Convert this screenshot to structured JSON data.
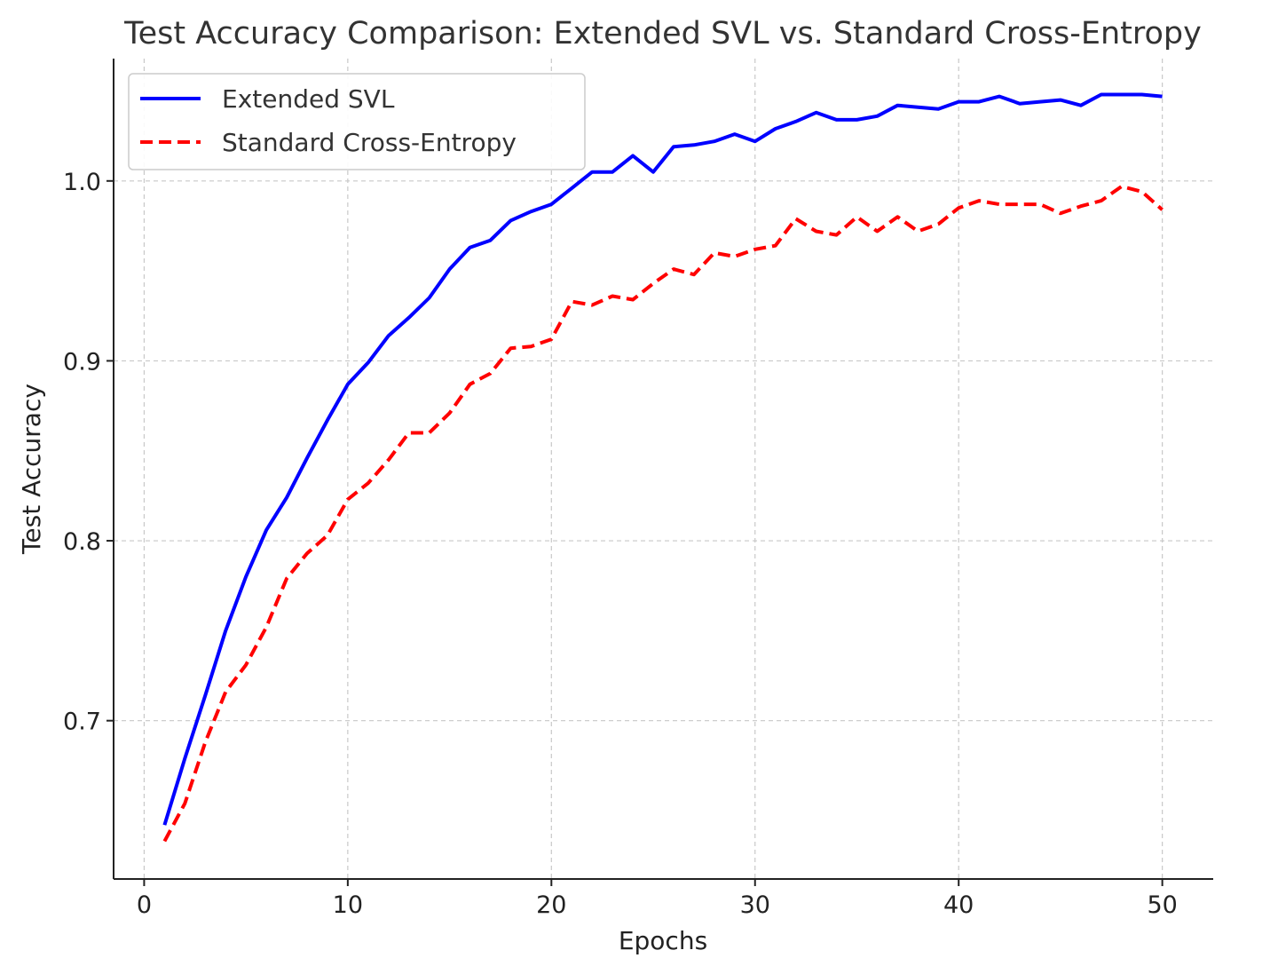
{
  "chart_data": {
    "type": "line",
    "title": "Test Accuracy Comparison: Extended SVL vs. Standard Cross-Entropy",
    "xlabel": "Epochs",
    "ylabel": "Test Accuracy",
    "xlim": [
      -1.5,
      52.5
    ],
    "ylim": [
      0.612,
      1.068
    ],
    "xticks": [
      0,
      10,
      20,
      30,
      40,
      50
    ],
    "xtick_labels": [
      "0",
      "10",
      "20",
      "30",
      "40",
      "50"
    ],
    "yticks": [
      0.7,
      0.8,
      0.9,
      1.0
    ],
    "ytick_labels": [
      "0.7",
      "0.8",
      "0.9",
      "1.0"
    ],
    "grid": true,
    "legend_position": "top-left",
    "x": [
      1,
      2,
      3,
      4,
      5,
      6,
      7,
      8,
      9,
      10,
      11,
      12,
      13,
      14,
      15,
      16,
      17,
      18,
      19,
      20,
      21,
      22,
      23,
      24,
      25,
      26,
      27,
      28,
      29,
      30,
      31,
      32,
      33,
      34,
      35,
      36,
      37,
      38,
      39,
      40,
      41,
      42,
      43,
      44,
      45,
      46,
      47,
      48,
      49,
      50
    ],
    "series": [
      {
        "name": "Extended SVL",
        "color": "#0000ff",
        "style": "solid",
        "values": [
          0.642,
          0.679,
          0.714,
          0.75,
          0.78,
          0.806,
          0.824,
          0.846,
          0.867,
          0.887,
          0.899,
          0.914,
          0.924,
          0.935,
          0.951,
          0.963,
          0.967,
          0.978,
          0.983,
          0.987,
          0.996,
          1.005,
          1.005,
          1.014,
          1.005,
          1.019,
          1.02,
          1.022,
          1.026,
          1.022,
          1.029,
          1.033,
          1.038,
          1.034,
          1.034,
          1.036,
          1.042,
          1.041,
          1.04,
          1.044,
          1.044,
          1.047,
          1.043,
          1.044,
          1.045,
          1.042,
          1.048,
          1.048,
          1.048,
          1.047
        ]
      },
      {
        "name": "Standard Cross-Entropy",
        "color": "#ff0000",
        "style": "dashed",
        "values": [
          0.633,
          0.654,
          0.688,
          0.716,
          0.731,
          0.752,
          0.779,
          0.793,
          0.803,
          0.823,
          0.832,
          0.845,
          0.86,
          0.86,
          0.871,
          0.887,
          0.893,
          0.907,
          0.908,
          0.912,
          0.933,
          0.931,
          0.936,
          0.934,
          0.943,
          0.951,
          0.948,
          0.96,
          0.958,
          0.962,
          0.964,
          0.979,
          0.972,
          0.97,
          0.98,
          0.972,
          0.98,
          0.972,
          0.976,
          0.985,
          0.989,
          0.987,
          0.987,
          0.987,
          0.982,
          0.986,
          0.989,
          0.997,
          0.994,
          0.984
        ]
      }
    ]
  }
}
